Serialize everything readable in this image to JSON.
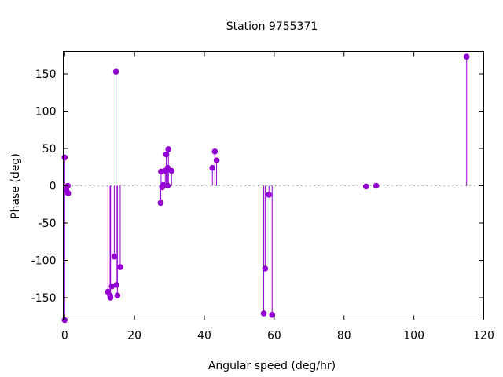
{
  "chart_data": {
    "type": "scatter",
    "style": "impulses-with-points",
    "title": "Station 9755371",
    "xlabel": "Angular speed (deg/hr)",
    "ylabel": "Phase (deg)",
    "xlim": [
      -0.4,
      120
    ],
    "ylim": [
      -180,
      180
    ],
    "xticks": [
      0,
      20,
      40,
      60,
      80,
      100,
      120
    ],
    "yticks": [
      -150,
      -100,
      -50,
      0,
      50,
      100,
      150
    ],
    "zero_line": true,
    "series_color": "#9400d3",
    "points": [
      {
        "x": 0.0,
        "y": -180
      },
      {
        "x": 0.0,
        "y": 38
      },
      {
        "x": 0.5,
        "y": -6
      },
      {
        "x": 0.9,
        "y": 0
      },
      {
        "x": 1.0,
        "y": -10
      },
      {
        "x": 12.4,
        "y": -142
      },
      {
        "x": 13.0,
        "y": -147
      },
      {
        "x": 13.1,
        "y": -150
      },
      {
        "x": 13.5,
        "y": -135
      },
      {
        "x": 14.2,
        "y": -95
      },
      {
        "x": 14.7,
        "y": 153
      },
      {
        "x": 14.8,
        "y": -133
      },
      {
        "x": 15.1,
        "y": -147
      },
      {
        "x": 15.9,
        "y": -109
      },
      {
        "x": 27.5,
        "y": -23
      },
      {
        "x": 27.6,
        "y": 19
      },
      {
        "x": 27.9,
        "y": -2
      },
      {
        "x": 28.2,
        "y": 1
      },
      {
        "x": 28.8,
        "y": 20
      },
      {
        "x": 29.1,
        "y": 42
      },
      {
        "x": 29.5,
        "y": 24
      },
      {
        "x": 29.5,
        "y": 0
      },
      {
        "x": 29.7,
        "y": 49
      },
      {
        "x": 30.6,
        "y": 20
      },
      {
        "x": 42.3,
        "y": 24
      },
      {
        "x": 43.0,
        "y": 46
      },
      {
        "x": 43.5,
        "y": 34
      },
      {
        "x": 57.0,
        "y": -171
      },
      {
        "x": 57.4,
        "y": -111
      },
      {
        "x": 58.5,
        "y": -12
      },
      {
        "x": 59.4,
        "y": -173
      },
      {
        "x": 86.3,
        "y": -1
      },
      {
        "x": 89.2,
        "y": 0
      },
      {
        "x": 115.1,
        "y": 173
      }
    ]
  }
}
